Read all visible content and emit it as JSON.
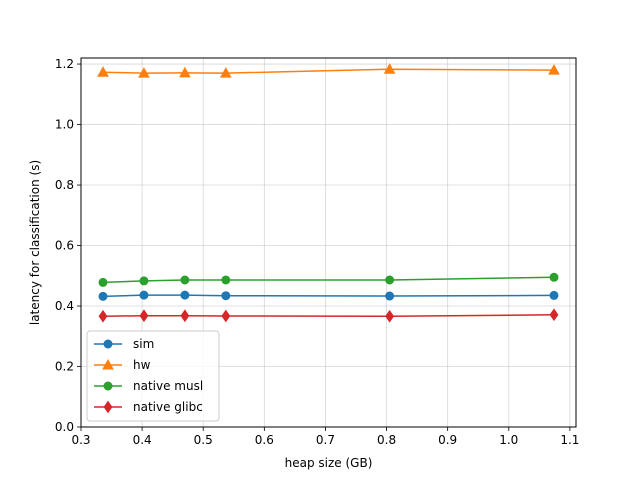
{
  "chart_data": {
    "type": "line",
    "title": "",
    "xlabel": "heap size (GB)",
    "ylabel": "latency for classification (s)",
    "xlim": [
      0.3,
      1.11
    ],
    "ylim": [
      0.0,
      1.22
    ],
    "xticks": [
      0.3,
      0.4,
      0.5,
      0.6,
      0.7,
      0.8,
      0.9,
      1.0,
      1.1
    ],
    "xtick_labels": [
      "0.3",
      "0.4",
      "0.5",
      "0.6",
      "0.7",
      "0.8",
      "0.9",
      "1.0",
      "1.1"
    ],
    "yticks": [
      0.0,
      0.2,
      0.4,
      0.6,
      0.8,
      1.0,
      1.2
    ],
    "ytick_labels": [
      "0.0",
      "0.2",
      "0.4",
      "0.6",
      "0.8",
      "1.0",
      "1.2"
    ],
    "grid": true,
    "legend_position": "lower-left",
    "x": [
      0.336,
      0.403,
      0.47,
      0.537,
      0.805,
      1.074
    ],
    "series": [
      {
        "name": "sim",
        "color": "#1f77b4",
        "marker": "circle",
        "values": [
          0.432,
          0.436,
          0.436,
          0.434,
          0.433,
          0.435
        ]
      },
      {
        "name": "hw",
        "color": "#ff7f0e",
        "marker": "triangle",
        "values": [
          1.173,
          1.17,
          1.171,
          1.17,
          1.183,
          1.18
        ]
      },
      {
        "name": "native musl",
        "color": "#2ca02c",
        "marker": "circle",
        "values": [
          0.478,
          0.483,
          0.486,
          0.486,
          0.486,
          0.495
        ]
      },
      {
        "name": "native glibc",
        "color": "#d62728",
        "marker": "diamond",
        "values": [
          0.366,
          0.368,
          0.368,
          0.367,
          0.366,
          0.371
        ]
      }
    ]
  }
}
